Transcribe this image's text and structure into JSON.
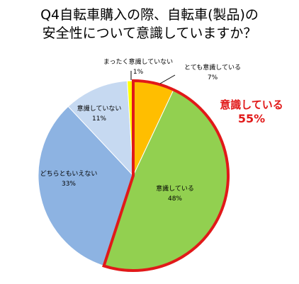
{
  "chart_data": {
    "type": "pie",
    "title_lines": [
      "Q4自転車購入の際、自転車(製品)の",
      "安全性について意識していますか？"
    ],
    "slices": [
      {
        "label": "とても意識している",
        "value": 7,
        "color": "#ffbe00"
      },
      {
        "label": "意識している",
        "value": 48,
        "color": "#92d050"
      },
      {
        "label": "どちらともいえない",
        "value": 33,
        "color": "#8db3e2"
      },
      {
        "label": "意識していない",
        "value": 11,
        "color": "#c6d9f1"
      },
      {
        "label": "まったく意識していない",
        "value": 1,
        "color": "#ffff00"
      }
    ],
    "highlight": {
      "label": "意識している",
      "value": "55%",
      "color": "#e11919"
    }
  }
}
